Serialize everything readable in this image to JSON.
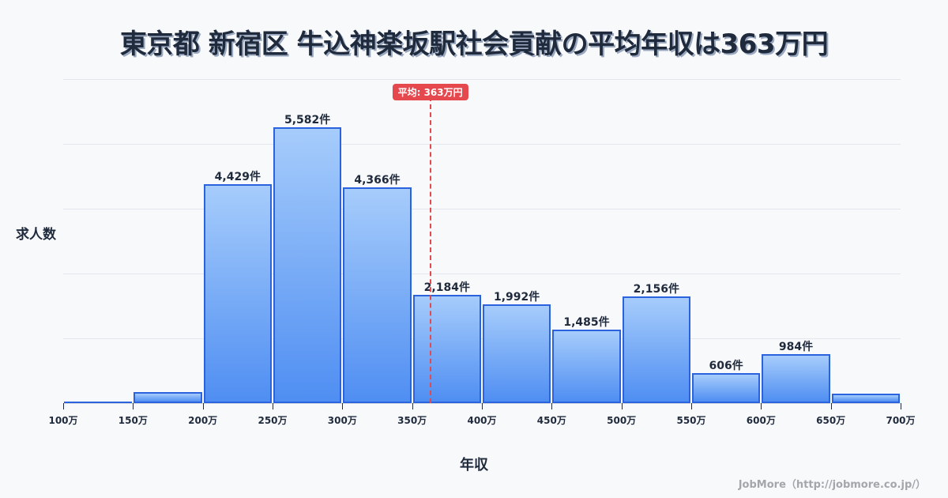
{
  "title": "東京都 新宿区 牛込神楽坂駅社会貢献の平均年収は363万円",
  "ylabel": "求人数",
  "xlabel": "年収",
  "mean_badge": "平均: 363万円",
  "credit": "JobMore（http://jobmore.co.jp/）",
  "colors": {
    "bar_border": "#2b63de",
    "bar_top": "#a6ccfb",
    "bar_bottom": "#4f8ef2",
    "mean": "#e5484d",
    "text": "#1f2a3c"
  },
  "chart_data": {
    "type": "bar",
    "title": "東京都 新宿区 牛込神楽坂駅社会貢献の平均年収は363万円",
    "xlabel": "年収",
    "ylabel": "求人数",
    "categories": [
      "100-150万",
      "150-200万",
      "200-250万",
      "250-300万",
      "300-350万",
      "350-400万",
      "400-450万",
      "450-500万",
      "500-550万",
      "550-600万",
      "600-650万",
      "650-700万"
    ],
    "values": [
      20,
      220,
      4429,
      5582,
      4366,
      2184,
      1992,
      1485,
      2156,
      606,
      984,
      190
    ],
    "value_labels": [
      "",
      "",
      "4,429件",
      "5,582件",
      "4,366件",
      "2,184件",
      "1,992件",
      "1,485件",
      "2,156件",
      "606件",
      "984件",
      ""
    ],
    "x_ticks": [
      "100万",
      "150万",
      "200万",
      "250万",
      "300万",
      "350万",
      "400万",
      "450万",
      "500万",
      "550万",
      "600万",
      "650万",
      "700万"
    ],
    "mean": 363,
    "mean_label": "平均: 363万円",
    "ylim": [
      0,
      6560
    ],
    "grid": true,
    "legend": null
  }
}
